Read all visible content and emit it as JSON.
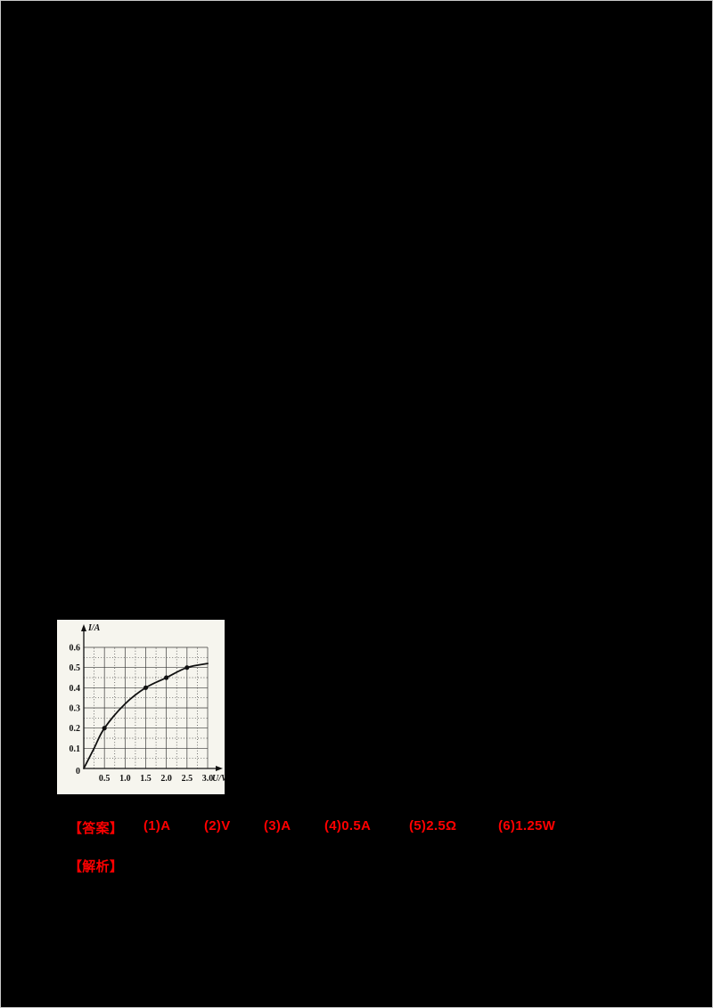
{
  "page": {
    "background": "#000000"
  },
  "chart_data": {
    "type": "line",
    "title": "",
    "xlabel": "U/V",
    "ylabel": "I/A",
    "x_ticks": [
      0.5,
      1.0,
      1.5,
      2.0,
      2.5,
      3.0
    ],
    "y_ticks": [
      0,
      0.1,
      0.2,
      0.3,
      0.4,
      0.5,
      0.6
    ],
    "xlim": [
      0,
      3.4
    ],
    "ylim": [
      0,
      0.68
    ],
    "grid": true,
    "origin_label": "0",
    "curve": {
      "x": [
        0,
        0.25,
        0.5,
        1.0,
        1.5,
        2.0,
        2.5,
        3.0
      ],
      "y": [
        0,
        0.1,
        0.2,
        0.32,
        0.4,
        0.45,
        0.5,
        0.52
      ]
    },
    "markers": [
      [
        0.5,
        0.2
      ],
      [
        1.5,
        0.4
      ],
      [
        2.0,
        0.45
      ],
      [
        2.5,
        0.5
      ]
    ]
  },
  "answers": {
    "label": "【答案】",
    "items": [
      "(1)A",
      "(2)V",
      "(3)A",
      "(4)0.5A",
      "(5)2.5Ω",
      "(6)1.25W"
    ],
    "color": "#ff0000"
  },
  "analysis": {
    "label": "【解析】",
    "color": "#ff0000"
  }
}
